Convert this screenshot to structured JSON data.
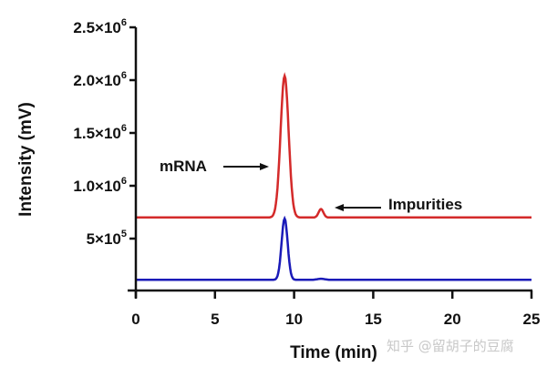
{
  "chart_data": {
    "type": "line",
    "title": "",
    "xlabel": "Time (min)",
    "ylabel": "Intensity (mV)",
    "xlim": [
      0,
      25
    ],
    "ylim": [
      0,
      2500000
    ],
    "x_ticks": [
      "0",
      "5",
      "10",
      "15",
      "20",
      "25"
    ],
    "y_ticks": [
      {
        "value": 500000,
        "mantissa": "5×10",
        "exp": "5"
      },
      {
        "value": 1000000,
        "mantissa": "1.0×10",
        "exp": "6"
      },
      {
        "value": 1500000,
        "mantissa": "1.5×10",
        "exp": "6"
      },
      {
        "value": 2000000,
        "mantissa": "2.0×10",
        "exp": "6"
      },
      {
        "value": 2500000,
        "mantissa": "2.5×10",
        "exp": "6"
      }
    ],
    "grid": false,
    "legend": null,
    "series": [
      {
        "name": "red trace (offset)",
        "color": "#d42a2a",
        "baseline": 700000,
        "peaks": [
          {
            "label": "mRNA",
            "x": 9.4,
            "y": 2040000,
            "width_min": 0.6
          },
          {
            "label": "Impurities",
            "x": 11.7,
            "y": 780000,
            "width_min": 0.35
          }
        ]
      },
      {
        "name": "blue trace",
        "color": "#1a1ab8",
        "baseline": 110000,
        "peaks": [
          {
            "label": "",
            "x": 9.4,
            "y": 690000,
            "width_min": 0.45
          },
          {
            "label": "",
            "x": 11.7,
            "y": 120000,
            "width_min": 0.5
          }
        ]
      }
    ],
    "annotations": [
      {
        "text": "mRNA",
        "arrow": "right",
        "points_to": {
          "x": 8.6,
          "y": 1200000
        }
      },
      {
        "text": "Impurities",
        "arrow": "left",
        "points_to": {
          "x": 12.5,
          "y": 780000
        }
      }
    ]
  },
  "watermark": "知乎 @留胡子的豆腐"
}
